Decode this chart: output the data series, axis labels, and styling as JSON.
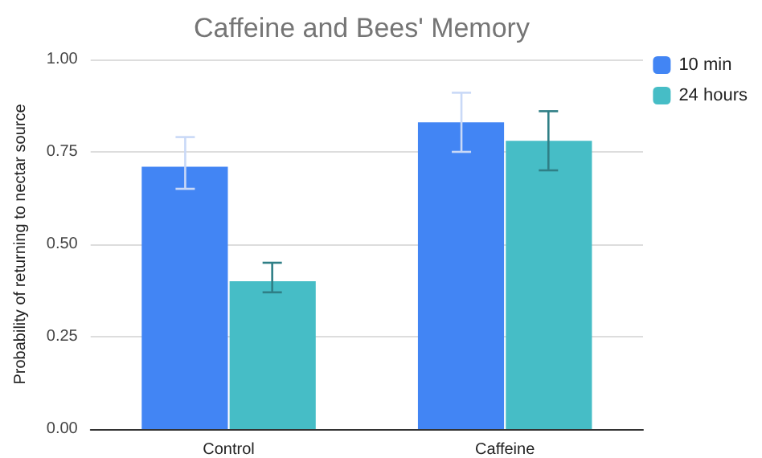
{
  "chart_data": {
    "type": "bar",
    "title": "Caffeine and Bees' Memory",
    "ylabel": "Probability of returning to nectar source",
    "categories": [
      "Control",
      "Caffeine"
    ],
    "series": [
      {
        "name": "10 min",
        "color": "#4285f4",
        "values": [
          0.71,
          0.83
        ],
        "errors": [
          [
            0.65,
            0.79
          ],
          [
            0.75,
            0.91
          ]
        ]
      },
      {
        "name": "24 hours",
        "color": "#46bdc6",
        "values": [
          0.4,
          0.78
        ],
        "errors": [
          [
            0.37,
            0.45
          ],
          [
            0.7,
            0.86
          ]
        ]
      }
    ],
    "ylim": [
      0,
      1
    ],
    "yticks": [
      {
        "value": 0,
        "label": "0.00"
      },
      {
        "value": 0.25,
        "label": "0.25"
      },
      {
        "value": 0.5,
        "label": "0.50"
      },
      {
        "value": 0.75,
        "label": "0.75"
      },
      {
        "value": 1,
        "label": "1.00"
      }
    ],
    "grid": "y",
    "legend": "top right"
  }
}
